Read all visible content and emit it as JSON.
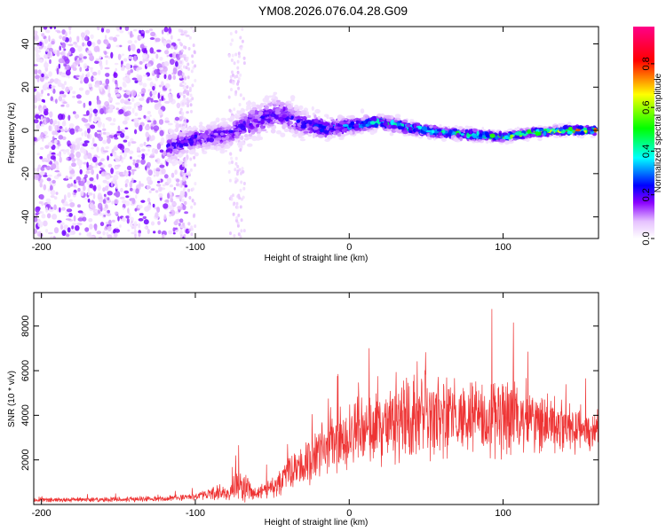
{
  "figure": {
    "title": "YM08.2026.076.04.28.G09"
  },
  "chart_data": [
    {
      "type": "heatmap",
      "name": "spectrogram",
      "title": "YM08.2026.076.04.28.G09",
      "xlabel": "Height of straight line (km)",
      "ylabel": "Frequency (Hz)",
      "xlim": [
        -205,
        162
      ],
      "ylim": [
        -50,
        48
      ],
      "x_ticks": [
        -200,
        -100,
        0,
        100
      ],
      "y_ticks": [
        -40,
        -20,
        0,
        20,
        40
      ],
      "colorbar": {
        "label": "Normalized spectral amplitude",
        "range": [
          0,
          0.97
        ],
        "ticks": [
          "0.0",
          "0.2",
          "0.4",
          "0.6",
          "0.8"
        ],
        "tick_values": [
          0,
          0.2,
          0.4,
          0.6,
          0.8
        ],
        "colormap": [
          "#ffffff",
          "#e0b3ff",
          "#7a00ff",
          "#0000ff",
          "#00ffff",
          "#00ff00",
          "#ffff00",
          "#ff0000",
          "#ff00aa"
        ]
      },
      "ridge": {
        "description": "frequency center trace",
        "x": [
          -118,
          -100,
          -80,
          -60,
          -45,
          -30,
          -15,
          0,
          20,
          40,
          60,
          80,
          100,
          120,
          140,
          160
        ],
        "center": [
          -8,
          -4,
          -2,
          5,
          8,
          3,
          1,
          2,
          4,
          1,
          -1,
          -2,
          -3,
          -1,
          0,
          0
        ],
        "halfwidth": [
          6,
          5,
          6,
          8,
          8,
          6,
          5,
          4,
          3,
          3,
          2.5,
          2.5,
          2,
          2,
          2,
          2
        ],
        "peak_amp": [
          0.3,
          0.35,
          0.3,
          0.3,
          0.3,
          0.35,
          0.4,
          0.45,
          0.55,
          0.55,
          0.6,
          0.6,
          0.65,
          0.7,
          0.8,
          0.8
        ]
      }
    },
    {
      "type": "line",
      "name": "snr",
      "xlabel": "Height of straight line (km)",
      "ylabel": "SNR (10 * v/v)",
      "xlim": [
        -205,
        162
      ],
      "ylim": [
        0,
        9500
      ],
      "x_ticks": [
        -200,
        -100,
        0,
        100
      ],
      "y_ticks": [
        2000,
        4000,
        6000,
        8000
      ],
      "color": "#ee3333",
      "envelope": {
        "x": [
          -205,
          -120,
          -100,
          -80,
          -70,
          -60,
          -50,
          -40,
          -30,
          -20,
          -10,
          0,
          20,
          40,
          60,
          80,
          100,
          120,
          140,
          162
        ],
        "mean": [
          200,
          250,
          350,
          600,
          900,
          500,
          800,
          1300,
          1800,
          2500,
          2800,
          3100,
          3500,
          4000,
          4000,
          3900,
          3900,
          3700,
          3500,
          3300
        ],
        "spread": [
          120,
          150,
          200,
          500,
          900,
          300,
          600,
          900,
          1200,
          1700,
          1800,
          1800,
          2000,
          2400,
          2100,
          2000,
          2300,
          1800,
          1400,
          1200
        ]
      }
    }
  ]
}
